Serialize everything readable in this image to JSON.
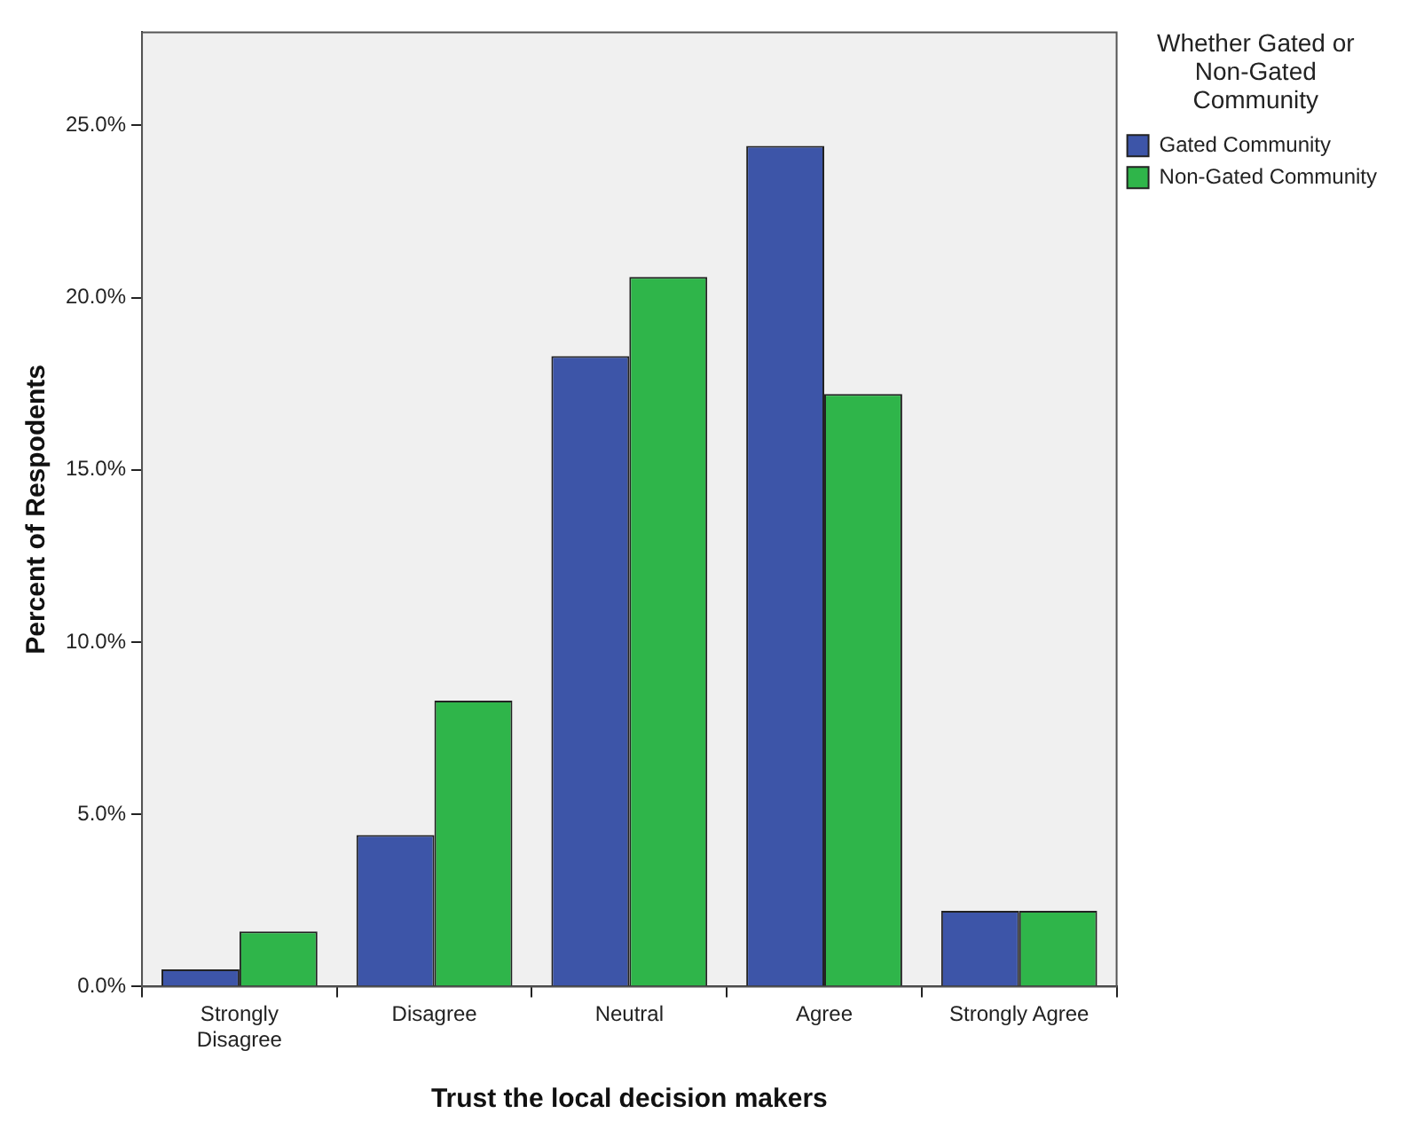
{
  "chart_data": {
    "type": "bar",
    "xlabel": "Trust the local decision makers",
    "ylabel": "Percent of Respodents",
    "legend_title": "Whether Gated or Non-Gated Community",
    "categories": [
      "Strongly Disagree",
      "Disagree",
      "Neutral",
      "Agree",
      "Strongly Agree"
    ],
    "series": [
      {
        "name": "Gated Community",
        "color": "#3d55a8",
        "values": [
          0.5,
          4.4,
          18.3,
          24.4,
          2.2
        ]
      },
      {
        "name": "Non-Gated Community",
        "color": "#2fb54a",
        "values": [
          1.6,
          8.3,
          20.6,
          17.2,
          2.2
        ]
      }
    ],
    "ylim": [
      0,
      27.7
    ],
    "yticks": [
      {
        "value": 0,
        "label": "0.0%"
      },
      {
        "value": 5,
        "label": "5.0%"
      },
      {
        "value": 10,
        "label": "10.0%"
      },
      {
        "value": 15,
        "label": "15.0%"
      },
      {
        "value": 20,
        "label": "20.0%"
      },
      {
        "value": 25,
        "label": "25.0%"
      }
    ],
    "grid": false,
    "legend": "top right"
  }
}
